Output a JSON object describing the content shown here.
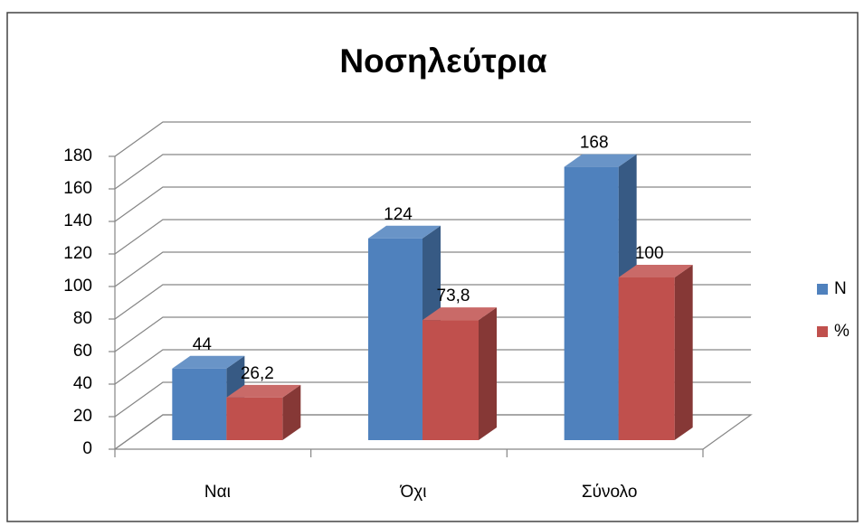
{
  "chart_data": {
    "type": "bar3d",
    "title": "Νοσηλεύτρια",
    "categories": [
      "Ναι",
      "Όχι",
      "Σύνολο"
    ],
    "series": [
      {
        "name": "N",
        "color": "#4f81bd",
        "values": [
          44,
          124,
          168
        ]
      },
      {
        "name": "%",
        "color": "#c0504d",
        "values": [
          26.2,
          73.8,
          100
        ],
        "value_labels": [
          "26,2",
          "73,8",
          "100"
        ]
      }
    ],
    "ylim": [
      0,
      180
    ],
    "yticks": [
      0,
      20,
      40,
      60,
      80,
      100,
      120,
      140,
      160,
      180
    ],
    "grid": true,
    "legend": "right"
  }
}
